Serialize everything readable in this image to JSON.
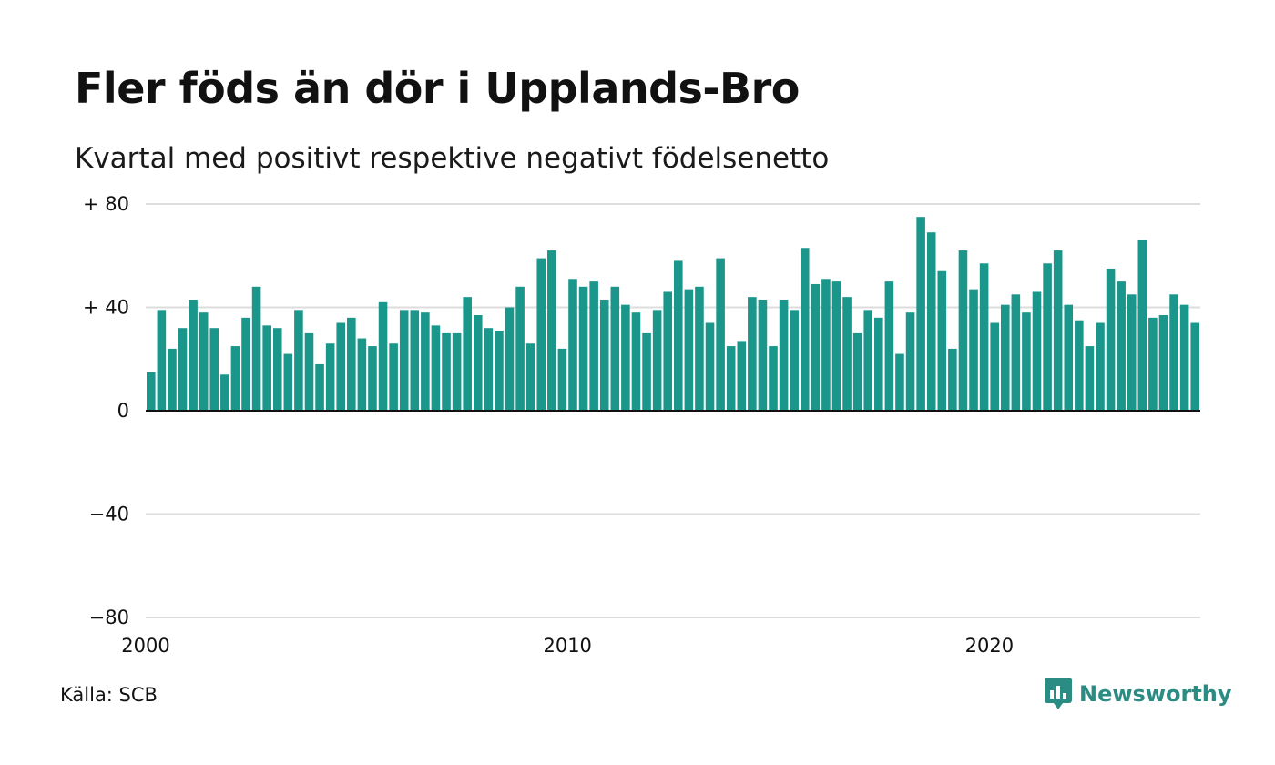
{
  "title": "Fler föds än dör i Upplands-Bro",
  "subtitle": "Kvartal med positivt respektive negativt födelsenetto",
  "source": "Källa: SCB",
  "brand": "Newsworthy",
  "colors": {
    "bar": "#1b968a",
    "grid": "#dddddd",
    "axis": "#111111",
    "brand": "#2a8c82"
  },
  "chart_data": {
    "type": "bar",
    "start_year": 2000,
    "interval": "quarter",
    "ylim": [
      -80,
      80
    ],
    "y_ticks": [
      80,
      40,
      0,
      -40,
      -80
    ],
    "y_tick_labels": [
      "+ 80",
      "+ 40",
      "0",
      "−40",
      "−80"
    ],
    "x_ticks": [
      2000,
      2010,
      2020
    ],
    "x_tick_labels": [
      "2000",
      "2010",
      "2020"
    ],
    "grid": true,
    "values": [
      15,
      39,
      24,
      32,
      43,
      38,
      32,
      14,
      25,
      36,
      48,
      33,
      32,
      22,
      39,
      30,
      18,
      26,
      34,
      36,
      28,
      25,
      42,
      26,
      39,
      39,
      38,
      33,
      30,
      30,
      44,
      37,
      32,
      31,
      40,
      48,
      26,
      59,
      62,
      24,
      51,
      48,
      50,
      43,
      48,
      41,
      38,
      30,
      39,
      46,
      58,
      47,
      48,
      34,
      59,
      25,
      27,
      44,
      43,
      25,
      43,
      39,
      63,
      49,
      51,
      50,
      44,
      30,
      39,
      36,
      50,
      22,
      38,
      75,
      69,
      54,
      24,
      62,
      47,
      57,
      34,
      41,
      45,
      38,
      46,
      57,
      62,
      41,
      35,
      25,
      34,
      55,
      50,
      45,
      66,
      36,
      37,
      45,
      41,
      34
    ]
  }
}
